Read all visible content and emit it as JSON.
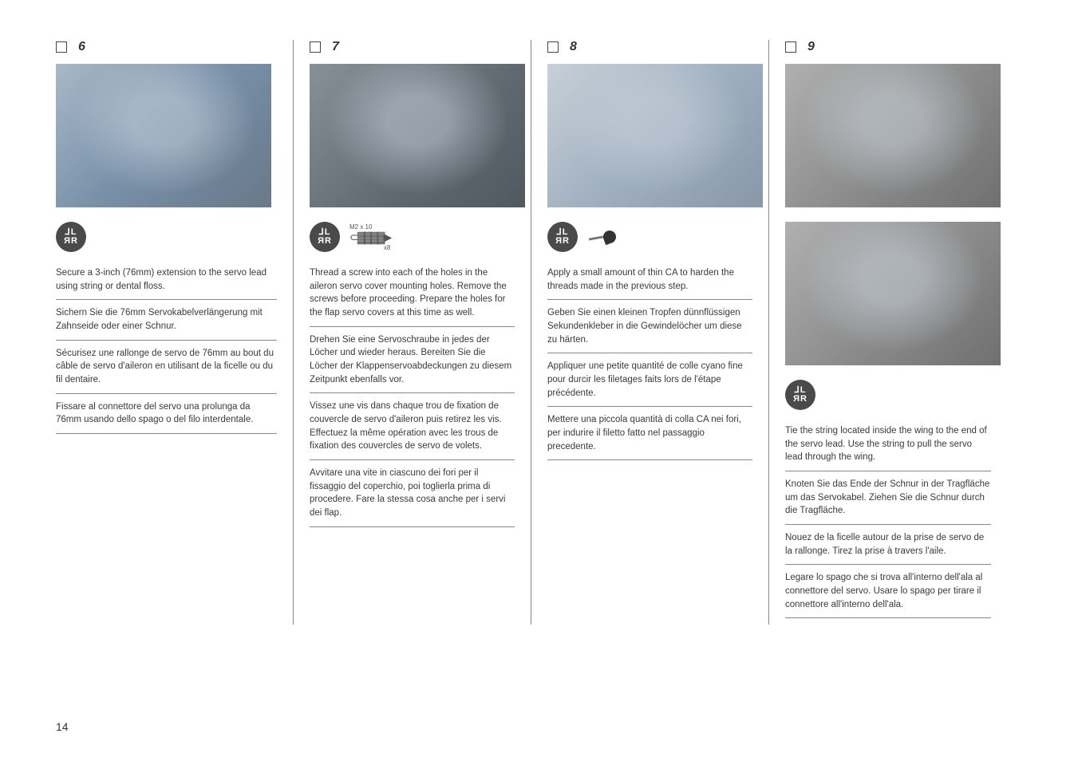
{
  "pageNumber": "14",
  "columns": [
    {
      "stepNum": "6",
      "photoClass": "",
      "icons": {
        "mirror": true,
        "screw": false,
        "pushpin": false
      },
      "paragraphs": [
        "Secure a 3-inch (76mm) extension to the servo lead using string or dental floss.",
        "Sichern Sie die 76mm Servokabelverlängerung mit Zahnseide oder einer Schnur.",
        "Sécurisez une rallonge de servo de 76mm au bout du câble de servo d'aileron en utilisant de la ficelle ou du fil dentaire.",
        "Fissare al connettore del servo una prolunga da 76mm usando dello spago o del filo interdentale."
      ]
    },
    {
      "stepNum": "7",
      "photoClass": "dark",
      "icons": {
        "mirror": true,
        "screw": true,
        "pushpin": false
      },
      "screwSpec": {
        "size": "M2 x 10",
        "qty": "x8"
      },
      "paragraphs": [
        "Thread a screw into each of the holes in the aileron servo cover mounting holes. Remove the screws before proceeding. Prepare the holes for the flap servo covers at this time as well.",
        "Drehen Sie eine Servoschraube in jedes der Löcher und wieder heraus. Bereiten Sie die Löcher der Klappenservoabdeckungen zu diesem Zeitpunkt ebenfalls vor.",
        "Vissez une vis dans chaque trou de fixation de couvercle de servo d'aileron puis retirez les vis. Effectuez la même opération avec les trous de fixation des couvercles de servo de volets.",
        "Avvitare una vite in ciascuno dei fori per il fissaggio del coperchio, poi toglierla prima di procedere. Fare la stessa cosa anche per i servi dei flap."
      ]
    },
    {
      "stepNum": "8",
      "photoClass": "light",
      "icons": {
        "mirror": true,
        "screw": false,
        "pushpin": true
      },
      "paragraphs": [
        "Apply a small amount of thin CA to harden the threads made in the previous step.",
        "Geben Sie einen kleinen Tropfen dünnflüssigen Sekundenkleber in die Gewindelöcher um diese zu härten.",
        "Appliquer une petite quantité de colle cyano fine pour durcir les filetages faits lors de l'étape précédente.",
        "Mettere una piccola quantità di colla CA nei fori, per indurire il filetto fatto nel passaggio precedente."
      ]
    },
    {
      "stepNum": "9",
      "photoClass": "mono",
      "doublePhoto": true,
      "icons": {
        "mirror": true,
        "screw": false,
        "pushpin": false
      },
      "paragraphs": [
        "Tie the string located inside the wing to the end of the servo lead. Use the string to pull the servo lead through the wing.",
        "Knoten Sie das Ende der Schnur in der Tragfläche um das Servokabel. Ziehen Sie die Schnur durch die Tragfläche.",
        "Nouez de la ficelle autour de la prise de servo de la rallonge. Tirez la prise à travers l'aile.",
        "Legare lo spago che si trova all'interno dell'ala al connettore del servo. Usare lo spago per tirare il connettore all'interno dell'ala."
      ]
    }
  ]
}
